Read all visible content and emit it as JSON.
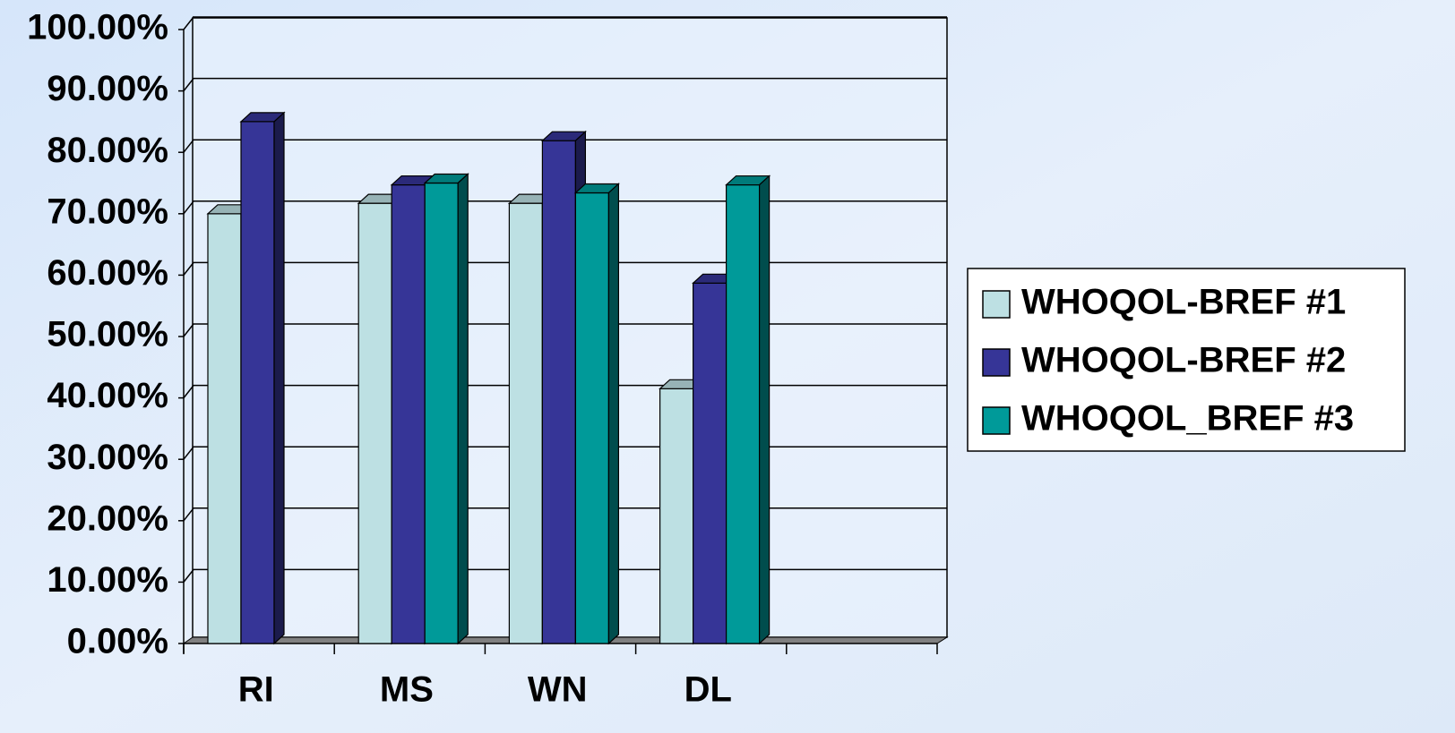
{
  "chart_data": {
    "type": "bar3d",
    "categories": [
      "RI",
      "MS",
      "WN",
      "DL",
      null
    ],
    "series": [
      {
        "name": "WHOQOL-BREF #1",
        "color": "#bde0e3",
        "values": [
          70,
          71.7,
          71.7,
          41.5,
          null
        ]
      },
      {
        "name": "WHOQOL-BREF #2",
        "color": "#363597",
        "values": [
          85,
          74.7,
          81.9,
          58.7,
          null
        ]
      },
      {
        "name": "WHOQOL_BREF #3",
        "color": "#009a99",
        "values": [
          null,
          75,
          73.4,
          74.7,
          null
        ]
      }
    ],
    "ylim": [
      0,
      100
    ],
    "yticks": [
      {
        "value": 0,
        "label": "0.00%"
      },
      {
        "value": 10,
        "label": "10.00%"
      },
      {
        "value": 20,
        "label": "20.00%"
      },
      {
        "value": 30,
        "label": "30.00%"
      },
      {
        "value": 40,
        "label": "40.00%"
      },
      {
        "value": 50,
        "label": "50.00%"
      },
      {
        "value": 60,
        "label": "60.00%"
      },
      {
        "value": 70,
        "label": "70.00%"
      },
      {
        "value": 80,
        "label": "80.00%"
      },
      {
        "value": 90,
        "label": "90.00%"
      },
      {
        "value": 100,
        "label": "100.00%"
      }
    ],
    "grid": true,
    "legend": "right"
  }
}
